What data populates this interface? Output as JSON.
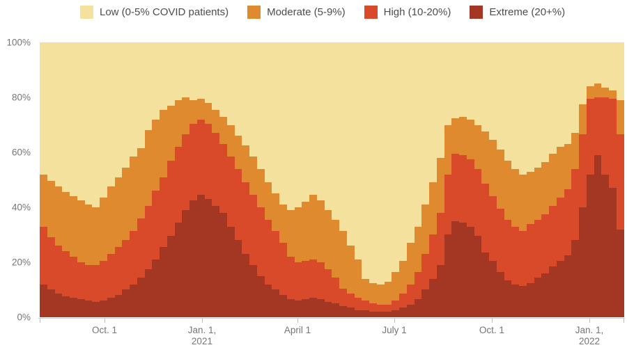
{
  "legend": {
    "items": [
      {
        "label": "Low (0-5% COVID patients)",
        "color": "#F5E19E"
      },
      {
        "label": "Moderate (5-9%)",
        "color": "#E08A2F"
      },
      {
        "label": "High (10-20%)",
        "color": "#D84A2A"
      },
      {
        "label": "Extreme (20+%)",
        "color": "#A43723"
      }
    ]
  },
  "chart_data": {
    "type": "bar",
    "variant": "stacked-100-weekly",
    "title": "",
    "xlabel": "",
    "ylabel": "",
    "ylim": [
      0,
      100
    ],
    "grid": false,
    "legend_position": "top",
    "y_ticks": [
      {
        "label": "0%",
        "value": 0
      },
      {
        "label": "20%",
        "value": 20
      },
      {
        "label": "40%",
        "value": 40
      },
      {
        "label": "60%",
        "value": 60
      },
      {
        "label": "80%",
        "value": 80
      },
      {
        "label": "100%",
        "value": 100
      }
    ],
    "x_ticks": [
      {
        "l1": "",
        "l2": "",
        "pos": 0
      },
      {
        "l1": "Oct. 1",
        "l2": "",
        "pos": 0.111
      },
      {
        "l1": "Jan. 1,",
        "l2": "2021",
        "pos": 0.278
      },
      {
        "l1": "April 1",
        "l2": "",
        "pos": 0.4415
      },
      {
        "l1": "July 1",
        "l2": "",
        "pos": 0.6074
      },
      {
        "l1": "Oct. 1",
        "l2": "",
        "pos": 0.7744
      },
      {
        "l1": "Jan. 1,",
        "l2": "2022",
        "pos": 0.9415
      },
      {
        "l1": "",
        "l2": "",
        "pos": 1
      }
    ],
    "series": [
      {
        "name": "Low (0-5% COVID patients)",
        "color": "#F5E19E",
        "values": [
          48,
          50.5,
          52.5,
          54.5,
          56,
          57.5,
          59,
          60,
          56.5,
          52.5,
          49,
          45.5,
          41.5,
          38.5,
          32,
          28,
          24.5,
          23,
          21,
          20,
          21,
          20.5,
          22,
          24.5,
          27,
          30,
          34,
          37.5,
          41.5,
          46,
          51,
          55,
          59,
          61,
          60,
          58,
          55.5,
          57.5,
          61,
          64.5,
          68.5,
          74,
          79,
          86,
          87.5,
          88,
          87,
          83.5,
          79.5,
          73,
          67,
          59,
          51,
          42,
          30,
          27.5,
          27,
          28,
          30,
          32.5,
          35.5,
          39,
          43,
          46,
          48,
          47,
          45.5,
          43.5,
          40.5,
          38,
          37,
          33,
          22.5,
          16,
          15,
          16.5,
          17.5,
          21
        ]
      },
      {
        "name": "Moderate (5-9%)",
        "color": "#E08A2F",
        "values": [
          19,
          20.5,
          21.5,
          21.5,
          22,
          22.5,
          22,
          21,
          23,
          24.5,
          25.5,
          26.5,
          27,
          25.5,
          27.5,
          26,
          24.5,
          20,
          17,
          13.5,
          8.5,
          7.5,
          7.5,
          8.5,
          10,
          11.5,
          12,
          13.5,
          14,
          14,
          13.5,
          13.5,
          14,
          17,
          20,
          21.5,
          23.5,
          22.5,
          21.5,
          21,
          21,
          17.5,
          14,
          8,
          7.5,
          7.5,
          8.5,
          10.5,
          12,
          15,
          16.5,
          18,
          19,
          20,
          18,
          13,
          14,
          14.5,
          16,
          19,
          20.5,
          21.5,
          21.5,
          21,
          20.5,
          19,
          19,
          19,
          19,
          18.5,
          16.5,
          13,
          11,
          4.5,
          5,
          3.5,
          3,
          12.5
        ]
      },
      {
        "name": "High (10-20%)",
        "color": "#D84A2A",
        "values": [
          21,
          19,
          17.5,
          16.5,
          15,
          13.5,
          13,
          13.5,
          14.5,
          16,
          17.5,
          18,
          19.5,
          21.5,
          23,
          25,
          25.5,
          27.5,
          27.5,
          27.5,
          28,
          27.5,
          27.5,
          26.5,
          25,
          25.5,
          26,
          26,
          25.5,
          25,
          23.5,
          21.5,
          19,
          15.5,
          14,
          14,
          14,
          13.5,
          12,
          9.5,
          6.5,
          5,
          4.5,
          3.5,
          3,
          2.5,
          2.5,
          3.5,
          5,
          7.5,
          10,
          13,
          16,
          19,
          22,
          24.5,
          24.5,
          24.5,
          24.5,
          25,
          23.5,
          23,
          22,
          21,
          20,
          21.5,
          21,
          21.5,
          22,
          23,
          24,
          26,
          26.5,
          27.5,
          21,
          28,
          32.5,
          34.5
        ]
      },
      {
        "name": "Extreme (20+%)",
        "color": "#A43723",
        "values": [
          12,
          10,
          8.5,
          7.5,
          7,
          6.5,
          6,
          5.5,
          6,
          7,
          8,
          10,
          12,
          14.5,
          17.5,
          21,
          25.5,
          29.5,
          34.5,
          39,
          42.5,
          44.5,
          43,
          40.5,
          38,
          33,
          28,
          23,
          19,
          15,
          12,
          10,
          8,
          6.5,
          6,
          6.5,
          7,
          6.5,
          5.5,
          5,
          4,
          3.5,
          2.5,
          2.5,
          2,
          2,
          2,
          2.5,
          3.5,
          4.5,
          6.5,
          10,
          14,
          19,
          30,
          35,
          34.5,
          33,
          29.5,
          23.5,
          20.5,
          16.5,
          13.5,
          12,
          11.5,
          12.5,
          14.5,
          16,
          18.5,
          20.5,
          22.5,
          28,
          40,
          52,
          59,
          52,
          47,
          32
        ]
      }
    ]
  }
}
